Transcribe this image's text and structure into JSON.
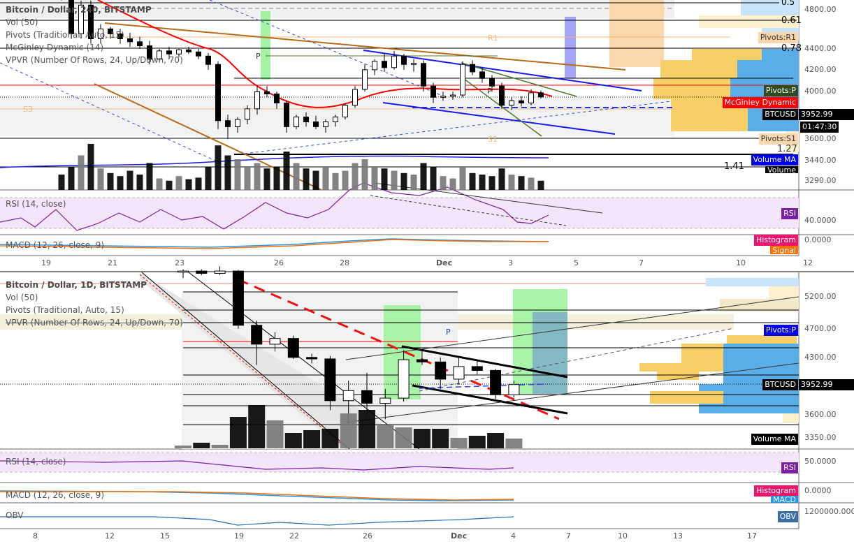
{
  "top_chart": {
    "legend": {
      "title": "Bitcoin / Dollar, 240, BITSTAMP",
      "studies": [
        "Vol (50)",
        "Pivots (Traditional, Auto, 15)",
        "McGinley Dynamic (14)",
        "VPVR (Number Of Rows, 24, Up/Down, 70)"
      ]
    },
    "price_axis": [
      "4800.00",
      "4400.00",
      "4200.00",
      "4000.00",
      "3600.00",
      "3440.00",
      "3290.00"
    ],
    "fib_labels": [
      "0.5",
      "0.61",
      "0.78",
      "1.41",
      "1.27"
    ],
    "pivot_labels": {
      "r1": "R1",
      "s1": "S1",
      "s3": "S3",
      "p": "P"
    },
    "tags": {
      "pivots_r1": "Pivots:R1",
      "pivots_p": "Pivots:P",
      "mcginley": "McGinley Dynamic",
      "symbol": "BTCUSD",
      "price": "3952.99",
      "countdown": "01:47:30",
      "pivots_s1": "Pivots:S1",
      "volume_ma": "Volume MA",
      "volume": "Volume",
      "rsi": "RSI",
      "histogram": "Histogram",
      "signal": "Signal"
    },
    "rsi_legend": "RSI (14, close)",
    "rsi_axis": "40.0000",
    "macd_legend": "MACD (12, 26, close, 9)",
    "macd_axis": "0.0000",
    "time_axis": [
      "19",
      "21",
      "23",
      "26",
      "28",
      "Dec",
      "3",
      "5",
      "7",
      "10",
      "12"
    ]
  },
  "bottom_chart": {
    "legend": {
      "title": "Bitcoin / Dollar, 1D, BITSTAMP",
      "studies": [
        "Vol (50)",
        "Pivots (Traditional, Auto, 15)",
        "VPVR (Number Of Rows, 24, Up/Down, 70)"
      ]
    },
    "price_axis": [
      "5200.00",
      "4700.00",
      "4300.00",
      "3600.00",
      "3350.00"
    ],
    "pivot_labels": {
      "p": "P"
    },
    "tags": {
      "pivots_p": "Pivots:P",
      "symbol": "BTCUSD",
      "price": "3952.99",
      "volume_ma": "Volume MA",
      "rsi": "RSI",
      "histogram": "Histogram",
      "macd": "MACD",
      "obv": "OBV"
    },
    "rsi_legend": "RSI (14, close)",
    "rsi_axis": "50.0000",
    "macd_legend": "MACD (12, 26, close, 9)",
    "macd_axis": "0.0000",
    "obv_legend": "OBV",
    "obv_axis": "1200000.0000",
    "time_axis": [
      "8",
      "12",
      "15",
      "19",
      "22",
      "26",
      "Dec",
      "4",
      "7",
      "10",
      "13",
      "17"
    ]
  },
  "colors": {
    "up": "#ffffff",
    "down": "#000000",
    "mcginley": "#ff0000",
    "vpvr_up": "#5aaee8",
    "vpvr_down": "#f8cf66",
    "rsi": "#7b1fa2",
    "macd": "#2196f3",
    "signal": "#ff6d00"
  },
  "chart_data": [
    {
      "type": "candlestick",
      "title": "Bitcoin / Dollar, 240, BITSTAMP",
      "scale": "log",
      "ylim": [
        3240,
        4900
      ],
      "ohlc": [
        [
          5100,
          5300,
          4900,
          4950
        ],
        [
          4950,
          5000,
          4500,
          4550
        ],
        [
          4550,
          4900,
          4500,
          4850
        ],
        [
          4850,
          4900,
          4450,
          4500
        ],
        [
          4500,
          4650,
          4450,
          4600
        ],
        [
          4600,
          4620,
          4500,
          4550
        ],
        [
          4550,
          4600,
          4450,
          4500
        ],
        [
          4500,
          4560,
          4420,
          4470
        ],
        [
          4470,
          4520,
          4400,
          4430
        ],
        [
          4430,
          4480,
          4250,
          4300
        ],
        [
          4300,
          4400,
          4280,
          4380
        ],
        [
          4380,
          4420,
          4300,
          4350
        ],
        [
          4350,
          4400,
          4320,
          4390
        ],
        [
          4390,
          4420,
          4350,
          4370
        ],
        [
          4370,
          4400,
          4300,
          4330
        ],
        [
          4330,
          4360,
          4200,
          4250
        ],
        [
          4250,
          4280,
          3680,
          3750
        ],
        [
          3750,
          3800,
          3600,
          3700
        ],
        [
          3700,
          3780,
          3650,
          3760
        ],
        [
          3760,
          3880,
          3720,
          3850
        ],
        [
          3850,
          4050,
          3800,
          4000
        ],
        [
          4000,
          4050,
          3950,
          3980
        ],
        [
          3980,
          4000,
          3850,
          3900
        ],
        [
          3900,
          3920,
          3650,
          3700
        ],
        [
          3700,
          3800,
          3680,
          3780
        ],
        [
          3780,
          3820,
          3700,
          3740
        ],
        [
          3740,
          3790,
          3680,
          3700
        ],
        [
          3700,
          3760,
          3650,
          3740
        ],
        [
          3740,
          3800,
          3700,
          3780
        ],
        [
          3780,
          3900,
          3760,
          3880
        ],
        [
          3880,
          4050,
          3860,
          4020
        ],
        [
          4020,
          4250,
          4000,
          4200
        ],
        [
          4200,
          4300,
          4150,
          4280
        ],
        [
          4280,
          4350,
          4180,
          4220
        ],
        [
          4220,
          4380,
          4200,
          4330
        ],
        [
          4330,
          4350,
          4200,
          4250
        ],
        [
          4250,
          4300,
          4180,
          4260
        ],
        [
          4260,
          4290,
          4000,
          4050
        ],
        [
          4050,
          4080,
          3900,
          3950
        ],
        [
          3950,
          4000,
          3920,
          3960
        ],
        [
          3960,
          4000,
          3930,
          3970
        ],
        [
          3970,
          4280,
          3950,
          4250
        ],
        [
          4250,
          4290,
          4150,
          4180
        ],
        [
          4180,
          4220,
          4080,
          4120
        ],
        [
          4120,
          4150,
          4000,
          4050
        ],
        [
          4050,
          4080,
          3850,
          3880
        ],
        [
          3880,
          3950,
          3840,
          3920
        ],
        [
          3920,
          3960,
          3870,
          3900
        ],
        [
          3900,
          4020,
          3880,
          3990
        ],
        [
          3990,
          4010,
          3940,
          3953
        ]
      ],
      "volume": [
        20,
        30,
        45,
        60,
        28,
        22,
        18,
        25,
        20,
        35,
        15,
        12,
        18,
        14,
        16,
        30,
        58,
        45,
        40,
        30,
        35,
        28,
        30,
        50,
        35,
        28,
        25,
        30,
        22,
        25,
        35,
        40,
        30,
        28,
        25,
        22,
        20,
        35,
        30,
        18,
        15,
        30,
        22,
        20,
        18,
        28,
        20,
        18,
        16,
        12
      ]
    },
    {
      "type": "candlestick",
      "title": "Bitcoin / Dollar, 1D, BITSTAMP",
      "scale": "log",
      "ylim": [
        3200,
        5500
      ],
      "ohlc": [
        [
          5600,
          5650,
          5500,
          5620
        ],
        [
          5620,
          5650,
          5550,
          5580
        ],
        [
          5580,
          5700,
          5550,
          5620
        ],
        [
          5620,
          5640,
          4700,
          4750
        ],
        [
          4750,
          4820,
          4200,
          4480
        ],
        [
          4480,
          4650,
          4380,
          4560
        ],
        [
          4560,
          4600,
          4280,
          4300
        ],
        [
          4300,
          4350,
          4220,
          4280
        ],
        [
          4280,
          4320,
          3650,
          3760
        ],
        [
          3760,
          4000,
          3500,
          3880
        ],
        [
          3880,
          4100,
          3600,
          3730
        ],
        [
          3730,
          3900,
          3550,
          3790
        ],
        [
          3790,
          4400,
          3750,
          4270
        ],
        [
          4270,
          4400,
          4200,
          4240
        ],
        [
          4240,
          4300,
          3900,
          4020
        ],
        [
          4020,
          4300,
          3950,
          4180
        ],
        [
          4180,
          4250,
          4080,
          4130
        ],
        [
          4130,
          4150,
          3780,
          3830
        ],
        [
          3830,
          4000,
          3800,
          3953
        ]
      ],
      "volume": [
        4,
        8,
        5,
        45,
        62,
        40,
        22,
        26,
        28,
        50,
        55,
        34,
        30,
        28,
        28,
        15,
        18,
        22,
        14
      ]
    }
  ]
}
